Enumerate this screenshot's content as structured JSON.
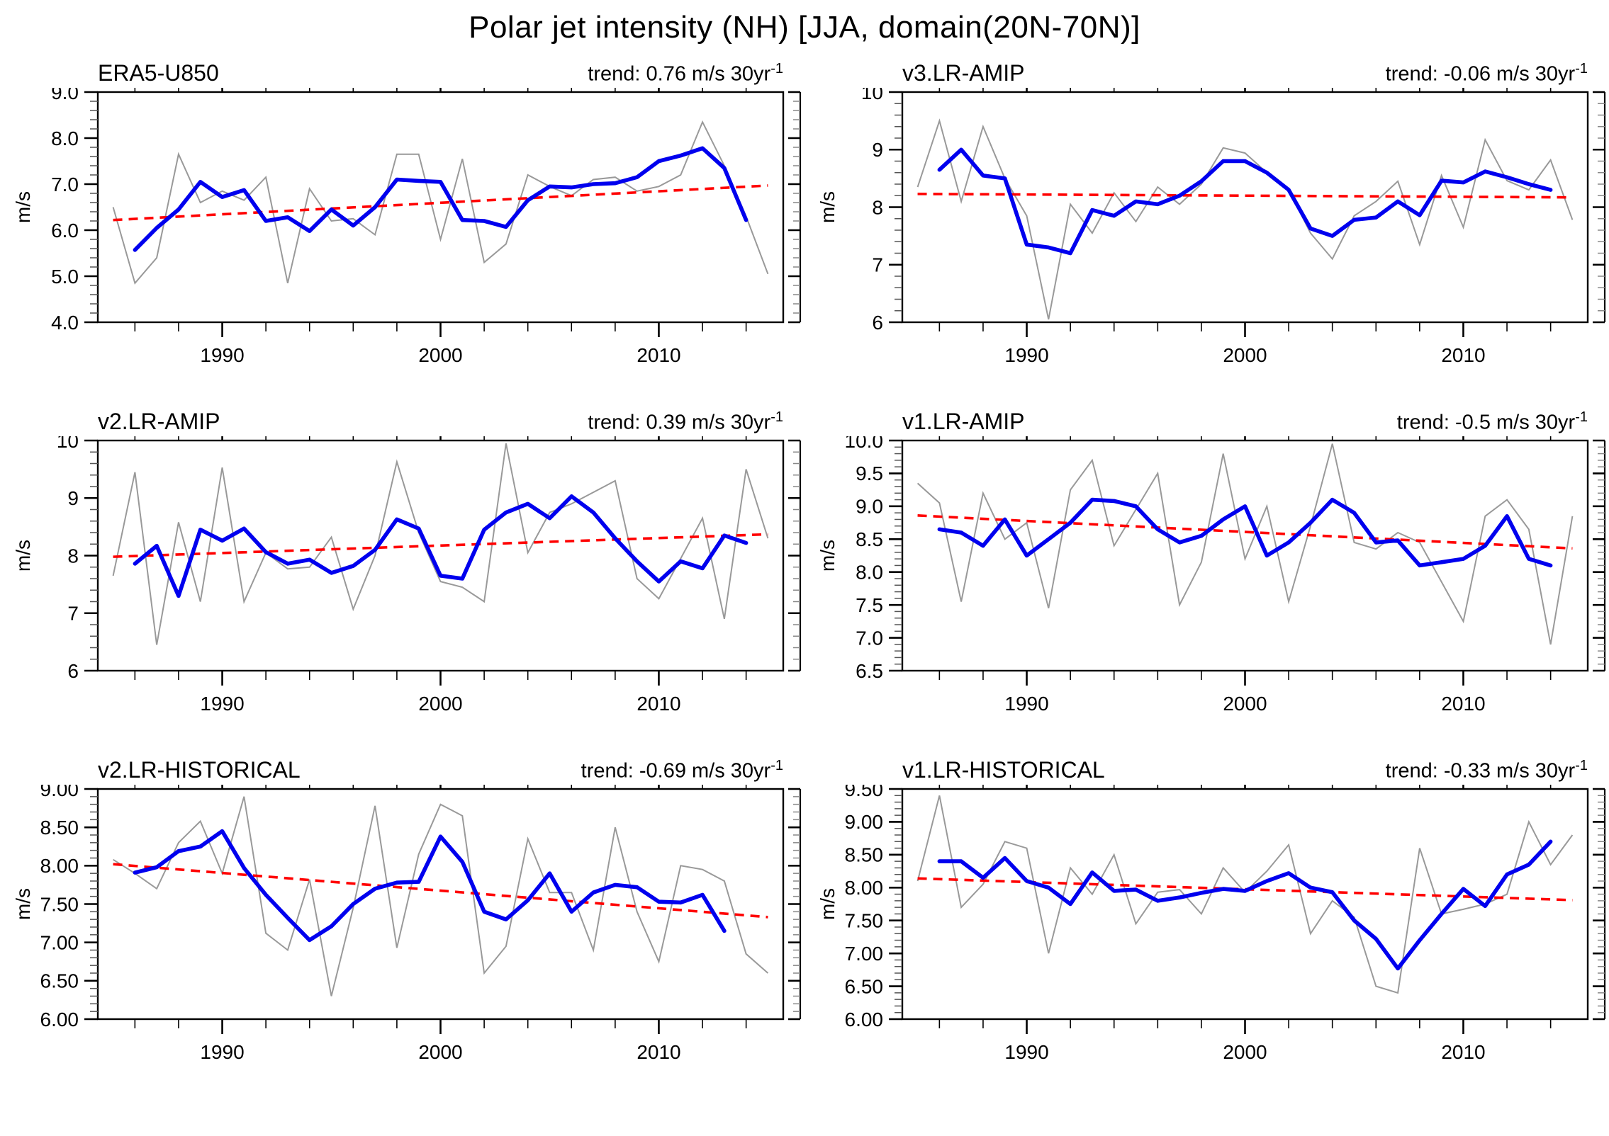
{
  "title": "Polar jet intensity (NH) [JJA, domain(20N-70N)]",
  "chart_data": {
    "type": "line",
    "title": "Polar jet intensity (NH) [JJA, domain(20N-70N)]",
    "ylabel": "m/s",
    "legend": "none",
    "grid": false,
    "colors": {
      "raw_series": "#999999",
      "smooth_series": "#0000ee",
      "trend_line": "#ff0000",
      "axis": "#000000"
    },
    "x": {
      "start_year": 1985,
      "end_year": 2015,
      "domain": [
        1984.3,
        2015.7
      ],
      "major_ticks": [
        1990,
        2000,
        2010
      ],
      "major_tick_labels": [
        "1990",
        "2000",
        "2010"
      ],
      "minor_tick_step_years": 2
    },
    "panels": [
      {
        "name": "ERA5-U850",
        "trend_text": "trend: 0.76 m/s 30yr",
        "trend_sup": "-1",
        "trend_value_m_per_s_per_30yr": 0.76,
        "ylim": [
          4.0,
          9.0
        ],
        "ytick_values": [
          4,
          5,
          6,
          7,
          8,
          9
        ],
        "ytick_labels": [
          "4.0",
          "5.0",
          "6.0",
          "7.0",
          "8.0",
          "9.0"
        ],
        "y_minor_step": 0.2,
        "trend_line": {
          "start": 6.22,
          "end": 6.97
        },
        "raw": [
          6.5,
          4.85,
          5.4,
          7.65,
          6.6,
          6.85,
          6.65,
          7.15,
          4.85,
          6.9,
          6.2,
          6.25,
          5.9,
          7.65,
          7.65,
          5.8,
          7.55,
          5.3,
          5.7,
          7.2,
          6.95,
          6.75,
          7.1,
          7.15,
          6.85,
          6.95,
          7.2,
          8.35,
          7.4,
          6.3,
          5.05
        ],
        "smooth_start_year": 1986,
        "smooth": [
          5.57,
          6.05,
          6.45,
          7.05,
          6.72,
          6.87,
          6.2,
          6.28,
          5.98,
          6.45,
          6.1,
          6.5,
          7.1,
          7.07,
          7.05,
          6.22,
          6.2,
          6.07,
          6.65,
          6.95,
          6.93,
          7.0,
          7.02,
          7.15,
          7.5,
          7.62,
          7.78,
          7.35,
          6.22
        ]
      },
      {
        "name": "v3.LR-AMIP",
        "trend_text": "trend: -0.06 m/s 30yr",
        "trend_sup": "-1",
        "trend_value_m_per_s_per_30yr": -0.06,
        "ylim": [
          6,
          10
        ],
        "ytick_values": [
          6,
          7,
          8,
          9,
          10
        ],
        "ytick_labels": [
          "6",
          "7",
          "8",
          "9",
          "10"
        ],
        "y_minor_step": 0.2,
        "trend_line": {
          "start": 8.23,
          "end": 8.17
        },
        "raw": [
          8.35,
          9.5,
          8.1,
          9.4,
          8.5,
          7.85,
          6.05,
          8.05,
          7.55,
          8.25,
          7.75,
          8.35,
          8.05,
          8.4,
          9.03,
          8.94,
          8.6,
          8.3,
          7.55,
          7.1,
          7.85,
          8.1,
          8.45,
          7.35,
          8.55,
          7.65,
          9.17,
          8.46,
          8.3,
          8.82,
          7.78
        ],
        "smooth_start_year": 1986,
        "smooth": [
          8.65,
          9.0,
          8.55,
          8.5,
          7.35,
          7.3,
          7.2,
          7.95,
          7.85,
          8.1,
          8.05,
          8.2,
          8.45,
          8.8,
          8.8,
          8.6,
          8.3,
          7.63,
          7.5,
          7.78,
          7.82,
          8.1,
          7.86,
          8.46,
          8.43,
          8.62,
          8.52,
          8.4,
          8.3
        ]
      },
      {
        "name": "v2.LR-AMIP",
        "trend_text": "trend: 0.39 m/s 30yr",
        "trend_sup": "-1",
        "trend_value_m_per_s_per_30yr": 0.39,
        "ylim": [
          6,
          10
        ],
        "ytick_values": [
          6,
          7,
          8,
          9,
          10
        ],
        "ytick_labels": [
          "6",
          "7",
          "8",
          "9",
          "10"
        ],
        "y_minor_step": 0.2,
        "trend_line": {
          "start": 7.98,
          "end": 8.37
        },
        "raw": [
          7.65,
          9.45,
          6.45,
          8.58,
          7.2,
          9.53,
          7.2,
          8.05,
          7.77,
          7.8,
          8.32,
          7.07,
          8.0,
          9.63,
          8.4,
          7.55,
          7.45,
          7.2,
          9.95,
          8.05,
          8.75,
          8.9,
          9.1,
          9.3,
          7.6,
          7.25,
          7.95,
          8.65,
          6.9,
          9.5,
          8.3
        ],
        "smooth_start_year": 1986,
        "smooth": [
          7.86,
          8.17,
          7.3,
          8.45,
          8.26,
          8.47,
          8.06,
          7.86,
          7.93,
          7.7,
          7.82,
          8.1,
          8.63,
          8.47,
          7.65,
          7.6,
          8.45,
          8.75,
          8.9,
          8.65,
          9.03,
          8.75,
          8.3,
          7.9,
          7.55,
          7.9,
          7.78,
          8.35,
          8.22
        ]
      },
      {
        "name": "v1.LR-AMIP",
        "trend_text": "trend: -0.5 m/s 30yr",
        "trend_sup": "-1",
        "trend_value_m_per_s_per_30yr": -0.5,
        "ylim": [
          6.5,
          10.0
        ],
        "ytick_values": [
          6.5,
          7.0,
          7.5,
          8.0,
          8.5,
          9.0,
          9.5,
          10.0
        ],
        "ytick_labels": [
          "6.5",
          "7.0",
          "7.5",
          "8.0",
          "8.5",
          "9.0",
          "9.5",
          "10.0"
        ],
        "y_minor_step": 0.1,
        "trend_line": {
          "start": 8.86,
          "end": 8.36
        },
        "raw": [
          9.35,
          9.05,
          7.55,
          9.2,
          8.5,
          8.75,
          7.45,
          9.25,
          9.7,
          8.4,
          8.95,
          9.5,
          7.5,
          8.15,
          9.8,
          8.2,
          9.0,
          7.55,
          8.7,
          9.95,
          8.45,
          8.35,
          8.6,
          8.45,
          7.85,
          7.25,
          8.85,
          9.1,
          8.65,
          6.9,
          8.85
        ],
        "smooth_start_year": 1986,
        "smooth": [
          8.65,
          8.6,
          8.4,
          8.8,
          8.25,
          8.5,
          8.75,
          9.1,
          9.08,
          9.0,
          8.65,
          8.45,
          8.55,
          8.8,
          9.0,
          8.25,
          8.45,
          8.75,
          9.1,
          8.9,
          8.45,
          8.48,
          8.1,
          8.15,
          8.2,
          8.4,
          8.85,
          8.2,
          8.1
        ]
      },
      {
        "name": "v2.LR-HISTORICAL",
        "trend_text": "trend: -0.69 m/s 30yr",
        "trend_sup": "-1",
        "trend_value_m_per_s_per_30yr": -0.69,
        "ylim": [
          6.0,
          9.0
        ],
        "ytick_values": [
          6.0,
          6.5,
          7.0,
          7.5,
          8.0,
          8.5,
          9.0
        ],
        "ytick_labels": [
          "6.00",
          "6.50",
          "7.00",
          "7.50",
          "8.00",
          "8.50",
          "9.00"
        ],
        "y_minor_step": 0.1,
        "trend_line": {
          "start": 8.02,
          "end": 7.33
        },
        "raw": [
          8.08,
          7.9,
          7.7,
          8.3,
          8.58,
          7.9,
          8.9,
          7.12,
          6.9,
          7.82,
          6.3,
          7.45,
          8.78,
          6.93,
          8.15,
          8.8,
          8.65,
          6.6,
          6.95,
          8.35,
          7.65,
          7.65,
          6.9,
          8.5,
          7.4,
          6.75,
          8.0,
          7.95,
          7.8,
          6.85,
          6.6
        ],
        "smooth_start_year": 1986,
        "smooth": [
          7.91,
          7.98,
          8.19,
          8.25,
          8.45,
          7.97,
          7.62,
          7.32,
          7.03,
          7.21,
          7.5,
          7.7,
          7.78,
          7.79,
          8.38,
          8.05,
          7.4,
          7.3,
          7.55,
          7.9,
          7.4,
          7.65,
          7.75,
          7.72,
          7.53,
          7.52,
          7.62,
          7.15
        ]
      },
      {
        "name": "v1.LR-HISTORICAL",
        "trend_text": "trend: -0.33 m/s 30yr",
        "trend_sup": "-1",
        "trend_value_m_per_s_per_30yr": -0.33,
        "ylim": [
          6.0,
          9.5
        ],
        "ytick_values": [
          6.0,
          6.5,
          7.0,
          7.5,
          8.0,
          8.5,
          9.0,
          9.5
        ],
        "ytick_labels": [
          "6.00",
          "6.50",
          "7.00",
          "7.50",
          "8.00",
          "8.50",
          "9.00",
          "9.50"
        ],
        "y_minor_step": 0.1,
        "trend_line": {
          "start": 8.14,
          "end": 7.81
        },
        "raw": [
          8.1,
          9.4,
          7.7,
          8.05,
          8.7,
          8.6,
          7.0,
          8.3,
          7.9,
          8.5,
          7.45,
          7.93,
          7.97,
          7.6,
          8.3,
          7.93,
          8.25,
          8.65,
          7.3,
          7.8,
          7.55,
          6.5,
          6.4,
          8.6,
          7.6,
          7.67,
          7.75,
          7.9,
          9.0,
          8.35,
          8.8
        ],
        "smooth_start_year": 1986,
        "smooth": [
          8.4,
          8.4,
          8.15,
          8.45,
          8.1,
          8.0,
          7.75,
          8.23,
          7.95,
          7.97,
          7.8,
          7.85,
          7.92,
          7.98,
          7.95,
          8.1,
          8.22,
          8.0,
          7.93,
          7.5,
          7.22,
          6.77,
          7.2,
          7.6,
          7.98,
          7.72,
          8.2,
          8.35,
          8.7
        ]
      }
    ]
  }
}
